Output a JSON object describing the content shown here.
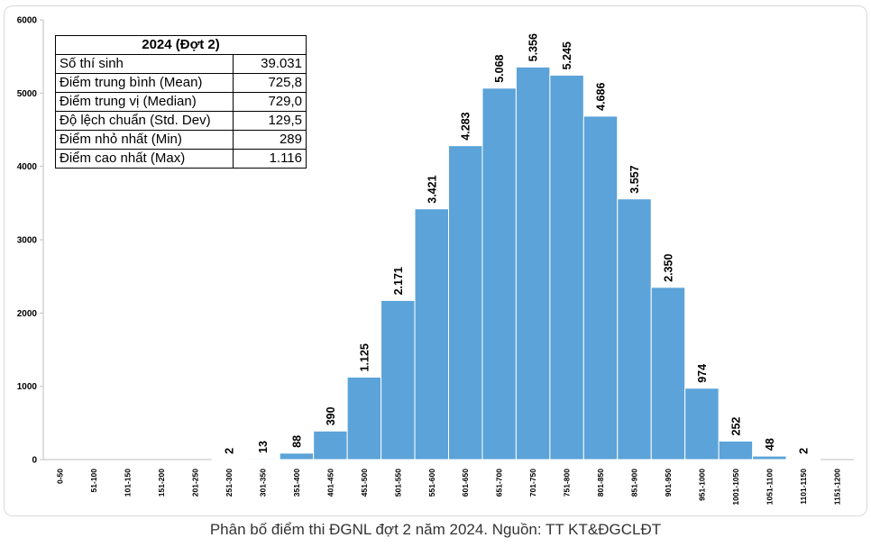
{
  "table": {
    "title": "2024 (Đợt 2)",
    "rows": [
      {
        "label": "Số thí sinh",
        "value": "39.031"
      },
      {
        "label": "Điểm trung bình (Mean)",
        "value": "725,8"
      },
      {
        "label": "Điểm trung vị (Median)",
        "value": "729,0"
      },
      {
        "label": "Độ lệch chuẩn (Std. Dev)",
        "value": "129,5"
      },
      {
        "label": "Điểm nhỏ nhất (Min)",
        "value": "289"
      },
      {
        "label": "Điểm cao nhất (Max)",
        "value": "1.116"
      }
    ]
  },
  "caption": "Phân bố điểm thi ĐGNL đợt 2 năm 2024. Nguồn: TT KT&ĐGCLĐT",
  "colors": {
    "bar": "#5ba3d8",
    "bar_edge": "#ffffff",
    "axis": "#bfbfbf",
    "text": "#000000"
  },
  "chart_data": {
    "type": "bar",
    "categories": [
      "0-50",
      "51-100",
      "101-150",
      "151-200",
      "201-250",
      "251-300",
      "301-350",
      "351-400",
      "401-450",
      "451-500",
      "501-550",
      "551-600",
      "601-650",
      "651-700",
      "701-750",
      "751-800",
      "801-850",
      "851-900",
      "901-950",
      "951-1000",
      "1001-1050",
      "1051-1100",
      "1101-1150",
      "1151-1200"
    ],
    "values": [
      0,
      0,
      0,
      0,
      0,
      2,
      13,
      88,
      390,
      1125,
      2171,
      3421,
      4283,
      5068,
      5356,
      5245,
      4686,
      3557,
      2350,
      974,
      252,
      48,
      2,
      0
    ],
    "data_labels": [
      "",
      "",
      "",
      "",
      "",
      "2",
      "13",
      "88",
      "390",
      "1.125",
      "2.171",
      "3.421",
      "4.283",
      "5.068",
      "5.356",
      "5.245",
      "4.686",
      "3.557",
      "2.350",
      "974",
      "252",
      "48",
      "2",
      ""
    ],
    "yticks": [
      0,
      1000,
      2000,
      3000,
      4000,
      5000,
      6000
    ],
    "ylim": [
      0,
      6000
    ],
    "grid": false
  }
}
